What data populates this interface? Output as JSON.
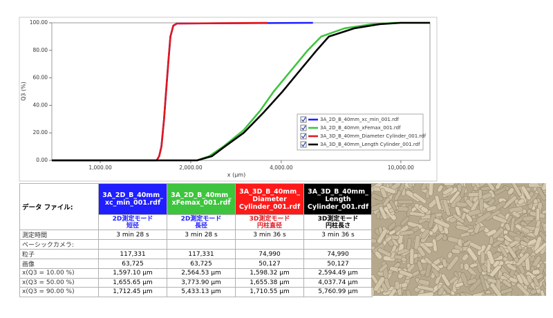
{
  "chart_data": {
    "type": "line",
    "xlabel": "x (µm)",
    "ylabel": "Q3 (%)",
    "xscale": "log",
    "xlim": [
      690,
      12500
    ],
    "ylim": [
      0,
      100
    ],
    "xticks": [
      {
        "value": 1000,
        "label": "1,000.00"
      },
      {
        "value": 2000,
        "label": "2,000.00"
      },
      {
        "value": 4000,
        "label": "4,000.00"
      },
      {
        "value": 10000,
        "label": "10,000.00"
      }
    ],
    "yticks": [
      {
        "value": 0,
        "label": "0.00"
      },
      {
        "value": 20,
        "label": "20.00"
      },
      {
        "value": 40,
        "label": "40.00"
      },
      {
        "value": 60,
        "label": "60.00"
      },
      {
        "value": 80,
        "label": "80.00"
      },
      {
        "value": 100,
        "label": "100.00"
      }
    ],
    "legend": "lower right",
    "series": [
      {
        "name": "3A_2D_B_40mm_xc_min_001.rdf",
        "color": "#1f1fff",
        "x": [
          690,
          1540,
          1570,
          1597,
          1630,
          1656,
          1685,
          1712,
          1750,
          1800,
          5100
        ],
        "values": [
          0,
          0,
          3,
          10,
          30,
          50,
          72,
          90,
          98,
          99.5,
          100
        ]
      },
      {
        "name": "3A_2D_B_40mm_xFemax_001.rdf",
        "color": "#3ec43e",
        "x": [
          690,
          2100,
          2300,
          2565,
          3000,
          3400,
          3774,
          4300,
          4900,
          5433,
          6500,
          8000,
          9500,
          12500
        ],
        "values": [
          0,
          0,
          3,
          10,
          22,
          36,
          50,
          65,
          80,
          90,
          96,
          99,
          100,
          100
        ]
      },
      {
        "name": "3A_3D_B_40mm_Diameter Cylinder_001.rdf",
        "color": "#e0181e",
        "x": [
          690,
          1540,
          1570,
          1598,
          1630,
          1655,
          1685,
          1711,
          1750,
          1800,
          3600
        ],
        "values": [
          0,
          0,
          3,
          10,
          30,
          50,
          72,
          90,
          98,
          99.5,
          100
        ]
      },
      {
        "name": "3A_3D_B_40mm_Length Cylinder_001.rdf",
        "color": "#000000",
        "x": [
          690,
          2100,
          2350,
          2594,
          3000,
          3500,
          4038,
          4600,
          5200,
          5761,
          7000,
          8500,
          10000,
          12500
        ],
        "values": [
          0,
          0,
          3,
          10,
          20,
          35,
          50,
          65,
          79,
          90,
          96,
          99,
          100,
          100
        ]
      }
    ]
  },
  "table": {
    "corner": "データ ファイル:",
    "columns": [
      {
        "file": [
          "3A_2D_B_40mm_",
          "xc_min_001.rdf"
        ],
        "mode": "2D測定モード",
        "measure": "短径",
        "color": "#1f1fff",
        "mode_color": "#1f1fff"
      },
      {
        "file": [
          "3A_2D_B_40mm_",
          "xFemax_001.rdf"
        ],
        "mode": "2D測定モード",
        "measure": "長径",
        "color": "#3ec43e",
        "mode_color": "#1f1fff"
      },
      {
        "file": [
          "3A_3D_B_40mm_",
          "Diameter",
          "Cylinder_001.rdf"
        ],
        "mode": "3D測定モード",
        "measure": "円柱直径",
        "color": "#ff1a1a",
        "mode_color": "#e0181e"
      },
      {
        "file": [
          "3A_3D_B_40mm_",
          "Length",
          "Cylinder_001.rdf"
        ],
        "mode": "3D測定モード",
        "measure": "円柱長さ",
        "color": "#000000",
        "mode_color": "#000000"
      }
    ],
    "rows": [
      [
        "測定時間",
        "3 min 28 s",
        "3 min 28 s",
        "3 min 36 s",
        "3 min 36 s"
      ],
      [
        "ベーシックカメラ:"
      ],
      [
        "粒子",
        "117,331",
        "117,331",
        "74,990",
        "74,990"
      ],
      [
        "画像",
        "63,725",
        "63,725",
        "50,127",
        "50,127"
      ],
      [
        "x(Q3 = 10.00 %)",
        "1,597.10 μm",
        "2,564.53 μm",
        "1,598.32 μm",
        "2,594.49 μm"
      ],
      [
        "x(Q3 = 50.00 %)",
        "1,655.65 μm",
        "3,773.90 μm",
        "1,655.38 μm",
        "4,037.74 μm"
      ],
      [
        "x(Q3 = 90.00 %)",
        "1,712.45 μm",
        "5,433.13 μm",
        "1,710.55 μm",
        "5,760.99 μm"
      ]
    ]
  }
}
